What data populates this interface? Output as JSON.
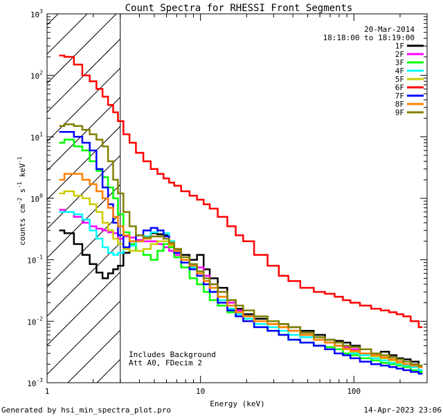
{
  "chart_data": {
    "type": "line",
    "title": "Count Spectra for RHESSI Front Segments",
    "xlabel": "Energy (keV)",
    "ylabel_base": "counts cm",
    "ylabel_exp1": "-2",
    "ylabel_mid": " s",
    "ylabel_exp2": "-1",
    "ylabel_end": " keV",
    "ylabel_exp3": "-1",
    "xscale": "log",
    "yscale": "log",
    "xlim": [
      1,
      300
    ],
    "ylim": [
      0.001,
      1000
    ],
    "x_ticks": [
      {
        "value": 1,
        "label": "1"
      },
      {
        "value": 10,
        "label": "10"
      },
      {
        "value": 100,
        "label": "100"
      }
    ],
    "y_ticks": [
      {
        "value": 0.001,
        "base": "10",
        "exp": "-3"
      },
      {
        "value": 0.01,
        "base": "10",
        "exp": "-2"
      },
      {
        "value": 0.1,
        "base": "10",
        "exp": "-1"
      },
      {
        "value": 1,
        "base": "10",
        "exp": "0"
      },
      {
        "value": 10,
        "base": "10",
        "exp": "1"
      },
      {
        "value": 100,
        "base": "10",
        "exp": "2"
      },
      {
        "value": 1000,
        "base": "10",
        "exp": "3"
      }
    ],
    "date": "20-Mar-2014",
    "time_range": "18:18:00 to 18:19:00",
    "shaded_region_max_energy": 3,
    "annotations": [
      "Includes Background",
      "Att A0, FDecim 2"
    ],
    "footer_left": "Generated by hsi_min_spectra_plot.pro",
    "footer_right": "14-Apr-2023 23:06",
    "legend_position": "top-right",
    "series": [
      {
        "name": "1F",
        "color": "#000000",
        "x": [
          1.2,
          1.4,
          1.6,
          1.8,
          2.0,
          2.2,
          2.4,
          2.6,
          2.8,
          3.0,
          3.3,
          3.6,
          4.0,
          4.5,
          5.0,
          5.5,
          6.0,
          6.5,
          7.0,
          8.0,
          9.0,
          10.0,
          11.0,
          12.0,
          14.0,
          16.0,
          18.0,
          20.0,
          25.0,
          30.0,
          35.0,
          40.0,
          50.0,
          60.0,
          70.0,
          80.0,
          90.0,
          100.0,
          120.0,
          140.0,
          160.0,
          180.0,
          200.0,
          220.0,
          250.0,
          280.0
        ],
        "y": [
          0.3,
          0.27,
          0.18,
          0.12,
          0.085,
          0.062,
          0.05,
          0.06,
          0.07,
          0.08,
          0.13,
          0.17,
          0.2,
          0.24,
          0.27,
          0.26,
          0.25,
          0.2,
          0.15,
          0.12,
          0.1,
          0.12,
          0.07,
          0.05,
          0.035,
          0.022,
          0.016,
          0.013,
          0.011,
          0.01,
          0.009,
          0.008,
          0.007,
          0.006,
          0.005,
          0.0048,
          0.0045,
          0.004,
          0.0035,
          0.003,
          0.0032,
          0.0028,
          0.0025,
          0.0024,
          0.0022,
          0.0018
        ]
      },
      {
        "name": "2F",
        "color": "#ff00ff",
        "x": [
          1.2,
          1.4,
          1.6,
          1.8,
          2.0,
          2.2,
          2.4,
          2.6,
          2.8,
          3.0,
          3.3,
          3.6,
          4.0,
          4.5,
          5.0,
          5.5,
          6.0,
          6.5,
          7.0,
          8.0,
          9.0,
          10.0,
          11.0,
          12.0,
          14.0,
          16.0,
          18.0,
          20.0,
          25.0,
          30.0,
          35.0,
          40.0,
          50.0,
          60.0,
          70.0,
          80.0,
          90.0,
          100.0,
          120.0,
          140.0,
          160.0,
          180.0,
          200.0,
          220.0,
          250.0,
          280.0
        ],
        "y": [
          0.65,
          0.6,
          0.5,
          0.4,
          0.35,
          0.32,
          0.3,
          0.28,
          0.27,
          0.22,
          0.24,
          0.23,
          0.21,
          0.2,
          0.2,
          0.18,
          0.16,
          0.14,
          0.12,
          0.1,
          0.08,
          0.075,
          0.055,
          0.04,
          0.03,
          0.02,
          0.015,
          0.012,
          0.01,
          0.009,
          0.008,
          0.007,
          0.006,
          0.005,
          0.0045,
          0.004,
          0.0038,
          0.0035,
          0.003,
          0.0028,
          0.0026,
          0.0024,
          0.0022,
          0.002,
          0.0018,
          0.0016
        ]
      },
      {
        "name": "3F",
        "color": "#00ff00",
        "x": [
          1.2,
          1.4,
          1.6,
          1.8,
          2.0,
          2.2,
          2.4,
          2.6,
          2.8,
          3.0,
          3.3,
          3.6,
          4.0,
          4.5,
          5.0,
          5.5,
          6.0,
          6.5,
          7.0,
          8.0,
          9.0,
          10.0,
          11.0,
          12.0,
          14.0,
          16.0,
          18.0,
          20.0,
          25.0,
          30.0,
          35.0,
          40.0,
          50.0,
          60.0,
          70.0,
          80.0,
          90.0,
          100.0,
          120.0,
          140.0,
          160.0,
          180.0,
          200.0,
          220.0,
          250.0,
          280.0
        ],
        "y": [
          8.0,
          9.0,
          7.0,
          6.0,
          4.0,
          2.8,
          2.2,
          1.5,
          1.0,
          0.55,
          0.28,
          0.18,
          0.14,
          0.12,
          0.1,
          0.14,
          0.18,
          0.16,
          0.11,
          0.075,
          0.05,
          0.04,
          0.03,
          0.022,
          0.018,
          0.014,
          0.012,
          0.01,
          0.008,
          0.007,
          0.006,
          0.005,
          0.0045,
          0.004,
          0.0038,
          0.0035,
          0.003,
          0.0028,
          0.0025,
          0.0023,
          0.0021,
          0.002,
          0.0019,
          0.0018,
          0.0016,
          0.0015
        ]
      },
      {
        "name": "4F",
        "color": "#00ffff",
        "x": [
          1.2,
          1.4,
          1.6,
          1.8,
          2.0,
          2.2,
          2.4,
          2.6,
          2.8,
          3.0,
          3.3,
          3.6,
          4.0,
          4.5,
          5.0,
          5.5,
          6.0,
          6.5,
          7.0,
          8.0,
          9.0,
          10.0,
          11.0,
          12.0,
          14.0,
          16.0,
          18.0,
          20.0,
          25.0,
          30.0,
          35.0,
          40.0,
          50.0,
          60.0,
          70.0,
          80.0,
          90.0,
          100.0,
          120.0,
          140.0,
          160.0,
          180.0,
          200.0,
          220.0,
          250.0,
          280.0
        ],
        "y": [
          0.6,
          0.6,
          0.55,
          0.45,
          0.3,
          0.22,
          0.16,
          0.13,
          0.12,
          0.13,
          0.15,
          0.17,
          0.2,
          0.24,
          0.28,
          0.3,
          0.27,
          0.2,
          0.14,
          0.09,
          0.075,
          0.06,
          0.04,
          0.03,
          0.022,
          0.016,
          0.013,
          0.011,
          0.009,
          0.008,
          0.007,
          0.006,
          0.0055,
          0.005,
          0.0045,
          0.004,
          0.0035,
          0.003,
          0.0028,
          0.0025,
          0.0023,
          0.0021,
          0.002,
          0.0019,
          0.0018,
          0.0016
        ]
      },
      {
        "name": "5F",
        "color": "#cccc00",
        "x": [
          1.2,
          1.4,
          1.6,
          1.8,
          2.0,
          2.2,
          2.4,
          2.6,
          2.8,
          3.0,
          3.3,
          3.6,
          4.0,
          4.5,
          5.0,
          5.5,
          6.0,
          6.5,
          7.0,
          8.0,
          9.0,
          10.0,
          11.0,
          12.0,
          14.0,
          16.0,
          18.0,
          20.0,
          25.0,
          30.0,
          35.0,
          40.0,
          50.0,
          60.0,
          70.0,
          80.0,
          90.0,
          100.0,
          120.0,
          140.0,
          160.0,
          180.0,
          200.0,
          220.0,
          250.0,
          280.0
        ],
        "y": [
          1.2,
          1.3,
          1.1,
          1.0,
          0.8,
          0.6,
          0.4,
          0.3,
          0.22,
          0.18,
          0.15,
          0.14,
          0.14,
          0.15,
          0.18,
          0.2,
          0.2,
          0.17,
          0.14,
          0.1,
          0.08,
          0.06,
          0.045,
          0.035,
          0.025,
          0.018,
          0.014,
          0.012,
          0.01,
          0.009,
          0.008,
          0.007,
          0.006,
          0.005,
          0.0045,
          0.004,
          0.0035,
          0.0032,
          0.003,
          0.0027,
          0.0025,
          0.0023,
          0.0021,
          0.002,
          0.0019,
          0.0018
        ]
      },
      {
        "name": "6F",
        "color": "#ff0000",
        "x": [
          1.2,
          1.4,
          1.6,
          1.8,
          2.0,
          2.2,
          2.4,
          2.6,
          2.8,
          3.0,
          3.3,
          3.6,
          4.0,
          4.5,
          5.0,
          5.5,
          6.0,
          6.5,
          7.0,
          8.0,
          9.0,
          10.0,
          11.0,
          12.0,
          14.0,
          16.0,
          18.0,
          20.0,
          25.0,
          30.0,
          35.0,
          40.0,
          50.0,
          60.0,
          70.0,
          80.0,
          90.0,
          100.0,
          120.0,
          140.0,
          160.0,
          180.0,
          200.0,
          220.0,
          250.0,
          280.0
        ],
        "y": [
          210,
          200,
          150,
          100,
          80,
          60,
          45,
          33,
          25,
          18,
          11,
          8,
          5.5,
          4.0,
          3.0,
          2.5,
          2.1,
          1.8,
          1.6,
          1.3,
          1.1,
          0.95,
          0.8,
          0.68,
          0.5,
          0.35,
          0.25,
          0.2,
          0.12,
          0.08,
          0.055,
          0.045,
          0.035,
          0.03,
          0.028,
          0.025,
          0.022,
          0.02,
          0.018,
          0.016,
          0.015,
          0.014,
          0.013,
          0.012,
          0.01,
          0.008
        ]
      },
      {
        "name": "7F",
        "color": "#0000ff",
        "x": [
          1.2,
          1.4,
          1.6,
          1.8,
          2.0,
          2.2,
          2.4,
          2.6,
          2.8,
          3.0,
          3.3,
          3.6,
          4.0,
          4.5,
          5.0,
          5.5,
          6.0,
          6.5,
          7.0,
          8.0,
          9.0,
          10.0,
          11.0,
          12.0,
          14.0,
          16.0,
          18.0,
          20.0,
          25.0,
          30.0,
          35.0,
          40.0,
          50.0,
          60.0,
          70.0,
          80.0,
          90.0,
          100.0,
          120.0,
          140.0,
          160.0,
          180.0,
          200.0,
          220.0,
          250.0,
          280.0
        ],
        "y": [
          12.0,
          12.0,
          10.0,
          8.0,
          6.0,
          3.0,
          1.5,
          0.8,
          0.4,
          0.25,
          0.16,
          0.2,
          0.25,
          0.3,
          0.33,
          0.3,
          0.24,
          0.18,
          0.13,
          0.09,
          0.07,
          0.055,
          0.04,
          0.03,
          0.02,
          0.015,
          0.012,
          0.01,
          0.008,
          0.007,
          0.006,
          0.005,
          0.0045,
          0.004,
          0.0035,
          0.003,
          0.0028,
          0.0025,
          0.0022,
          0.002,
          0.0019,
          0.0018,
          0.0017,
          0.0016,
          0.0015,
          0.0014
        ]
      },
      {
        "name": "8F",
        "color": "#ff8000",
        "x": [
          1.2,
          1.4,
          1.6,
          1.8,
          2.0,
          2.2,
          2.4,
          2.6,
          2.8,
          3.0,
          3.3,
          3.6,
          4.0,
          4.5,
          5.0,
          5.5,
          6.0,
          6.5,
          7.0,
          8.0,
          9.0,
          10.0,
          11.0,
          12.0,
          14.0,
          16.0,
          18.0,
          20.0,
          25.0,
          30.0,
          35.0,
          40.0,
          50.0,
          60.0,
          70.0,
          80.0,
          90.0,
          100.0,
          120.0,
          140.0,
          160.0,
          180.0,
          200.0,
          220.0,
          250.0,
          280.0
        ],
        "y": [
          2.0,
          2.5,
          2.5,
          2.0,
          1.7,
          1.3,
          1.0,
          0.7,
          0.5,
          0.35,
          0.25,
          0.2,
          0.2,
          0.22,
          0.24,
          0.24,
          0.22,
          0.18,
          0.14,
          0.1,
          0.08,
          0.06,
          0.045,
          0.035,
          0.025,
          0.018,
          0.014,
          0.012,
          0.01,
          0.009,
          0.008,
          0.007,
          0.006,
          0.005,
          0.0045,
          0.004,
          0.0036,
          0.0033,
          0.003,
          0.0028,
          0.0026,
          0.0024,
          0.0022,
          0.002,
          0.0019,
          0.0018
        ]
      },
      {
        "name": "9F",
        "color": "#808000",
        "x": [
          1.2,
          1.4,
          1.6,
          1.8,
          2.0,
          2.2,
          2.4,
          2.6,
          2.8,
          3.0,
          3.3,
          3.6,
          4.0,
          4.5,
          5.0,
          5.5,
          6.0,
          6.5,
          7.0,
          8.0,
          9.0,
          10.0,
          11.0,
          12.0,
          14.0,
          16.0,
          18.0,
          20.0,
          25.0,
          30.0,
          35.0,
          40.0,
          50.0,
          60.0,
          70.0,
          80.0,
          90.0,
          100.0,
          120.0,
          140.0,
          160.0,
          180.0,
          200.0,
          220.0,
          250.0,
          280.0
        ],
        "y": [
          15.0,
          16.0,
          15.0,
          13.0,
          11.0,
          9.0,
          7.0,
          4.0,
          2.0,
          1.2,
          0.6,
          0.35,
          0.25,
          0.23,
          0.24,
          0.24,
          0.22,
          0.19,
          0.15,
          0.11,
          0.085,
          0.065,
          0.05,
          0.04,
          0.03,
          0.022,
          0.018,
          0.015,
          0.012,
          0.01,
          0.009,
          0.008,
          0.0065,
          0.0055,
          0.005,
          0.0045,
          0.004,
          0.0038,
          0.0035,
          0.003,
          0.0028,
          0.0026,
          0.0024,
          0.0022,
          0.002,
          0.0019
        ]
      }
    ]
  }
}
